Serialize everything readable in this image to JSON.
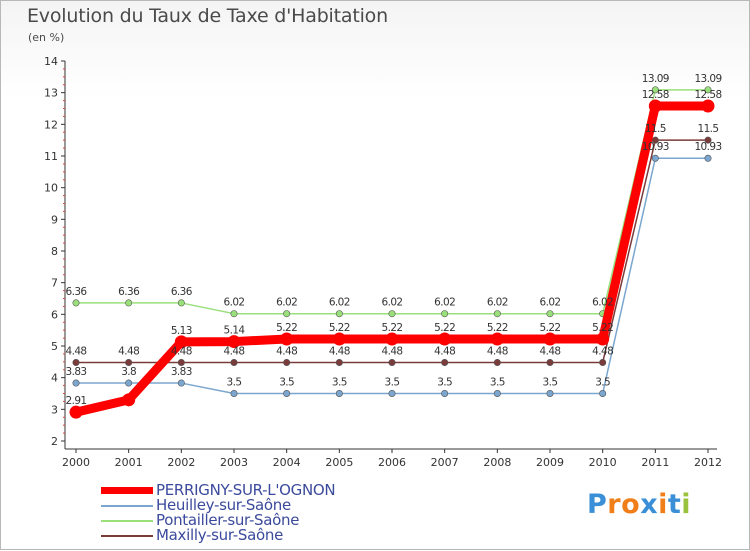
{
  "chart_data": {
    "type": "line",
    "title": "Evolution du Taux de Taxe d'Habitation",
    "subtitle": "(en %)",
    "xlabel": "",
    "ylabel": "(en %)",
    "ylim": [
      2,
      14
    ],
    "yticks": [
      2,
      3,
      4,
      5,
      6,
      7,
      8,
      9,
      10,
      11,
      12,
      13,
      14
    ],
    "categories": [
      "2000",
      "2001",
      "2002",
      "2003",
      "2004",
      "2005",
      "2006",
      "2007",
      "2008",
      "2009",
      "2010",
      "2011",
      "2012"
    ],
    "grid": false,
    "legend_position": "bottom-left",
    "series": [
      {
        "name": "Pontailler-sur-Saône",
        "color": "#99e07a",
        "values": [
          6.36,
          6.36,
          6.36,
          6.02,
          6.02,
          6.02,
          6.02,
          6.02,
          6.02,
          6.02,
          6.02,
          13.09,
          13.09
        ],
        "labels": [
          "6.36",
          "6.36",
          "6.36",
          "6.02",
          "6.02",
          "6.02",
          "6.02",
          "6.02",
          "6.02",
          "6.02",
          "6.02",
          "13.09",
          "13.09"
        ]
      },
      {
        "name": "Heuilley-sur-Saône",
        "color": "#7aa6cf",
        "values": [
          3.83,
          3.83,
          3.83,
          3.5,
          3.5,
          3.5,
          3.5,
          3.5,
          3.5,
          3.5,
          3.5,
          10.93,
          10.93
        ],
        "labels": [
          "3.83",
          "3.8",
          "3.83",
          "3.5",
          "3.5",
          "3.5",
          "3.5",
          "3.5",
          "3.5",
          "3.5",
          "3.5",
          "10.93",
          "10.93"
        ]
      },
      {
        "name": "Maxilly-sur-Saône",
        "color": "#7a3b3b",
        "values": [
          4.48,
          4.48,
          4.48,
          4.48,
          4.48,
          4.48,
          4.48,
          4.48,
          4.48,
          4.48,
          4.48,
          11.5,
          11.5
        ],
        "labels": [
          "4.48",
          "4.48",
          "4.48",
          "4.48",
          "4.48",
          "4.48",
          "4.48",
          "4.48",
          "4.48",
          "4.48",
          "4.48",
          "11.5",
          "11.5"
        ]
      },
      {
        "name": "PERRIGNY-SUR-L'OGNON",
        "color": "#ff0000",
        "values": [
          2.91,
          3.3,
          5.13,
          5.14,
          5.22,
          5.22,
          5.22,
          5.22,
          5.22,
          5.22,
          5.22,
          12.58,
          12.58
        ],
        "labels": [
          "2.91",
          "",
          "5.13",
          "5.14",
          "5.22",
          "5.22",
          "5.22",
          "5.22",
          "5.22",
          "5.22",
          "5.22",
          "12.58",
          "12.58"
        ]
      }
    ],
    "legend_order": [
      "PERRIGNY-SUR-L'OGNON",
      "Heuilley-sur-Saône",
      "Pontailler-sur-Saône",
      "Maxilly-sur-Saône"
    ]
  },
  "logo": {
    "text": "Proxiti",
    "letters": [
      {
        "ch": "P",
        "color": "#3a8fd6"
      },
      {
        "ch": "r",
        "color": "#f07f1a"
      },
      {
        "ch": "o",
        "color": "#f07f1a"
      },
      {
        "ch": "x",
        "color": "#3a8fd6"
      },
      {
        "ch": "i",
        "color": "#f07f1a"
      },
      {
        "ch": "t",
        "color": "#3a8fd6"
      },
      {
        "ch": "i",
        "color": "#9ac23c"
      }
    ]
  }
}
